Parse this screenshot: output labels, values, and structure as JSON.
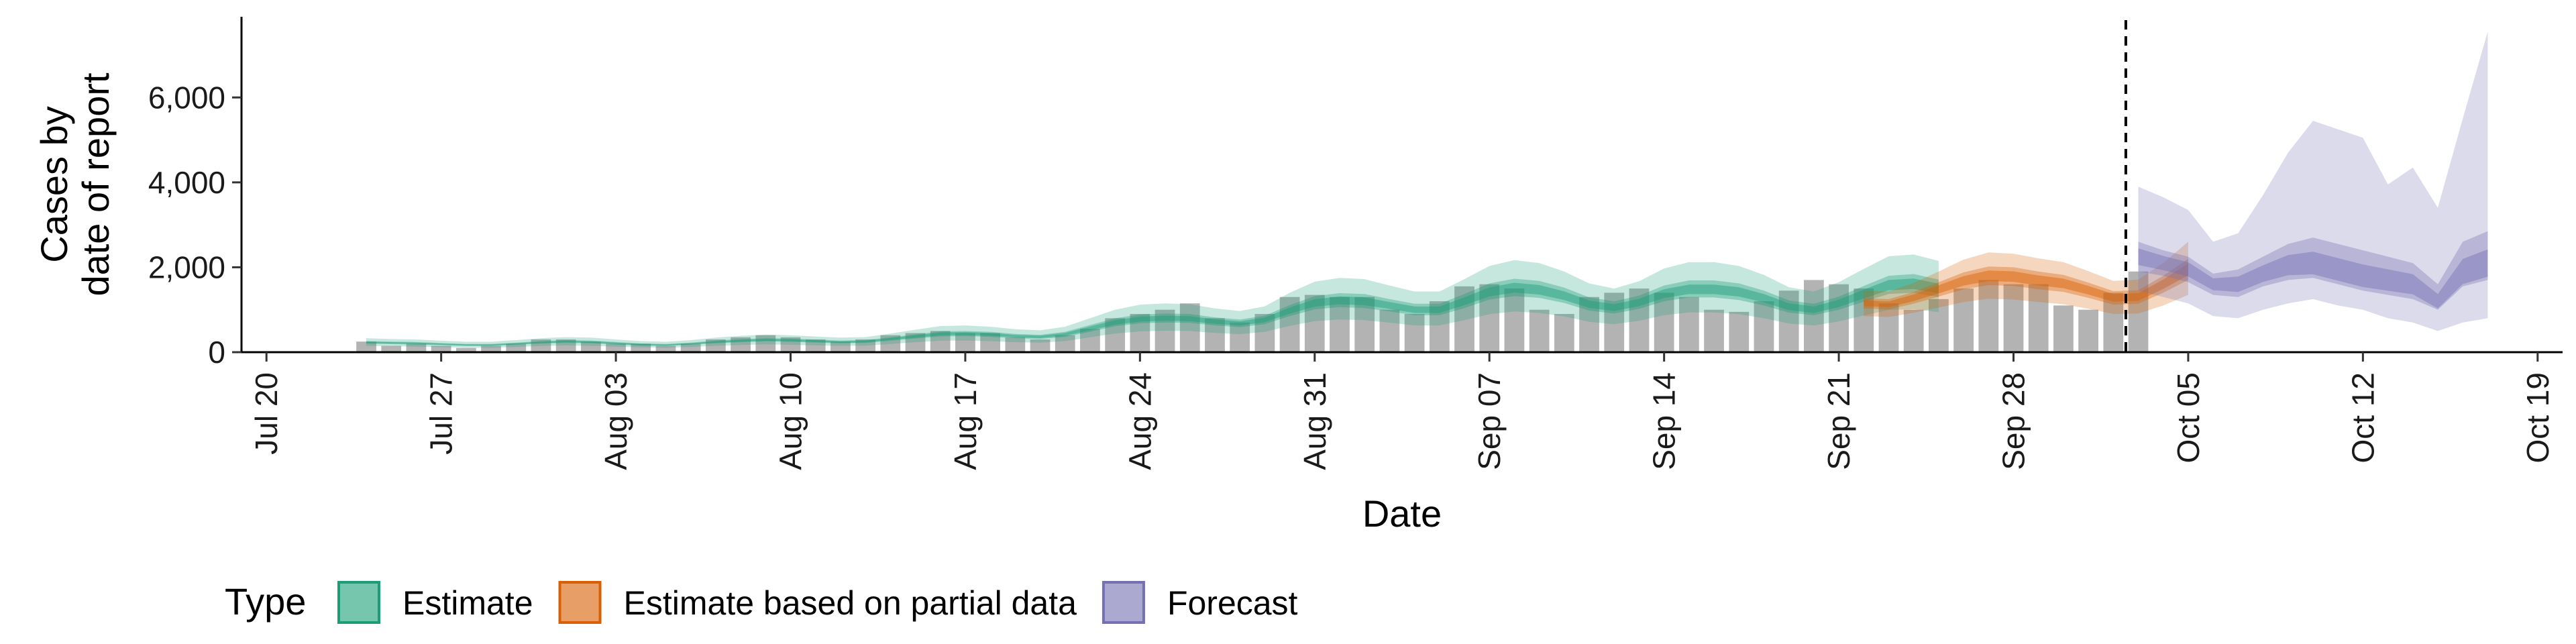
{
  "chart_data": {
    "type": "bar",
    "xlabel": "Date",
    "ylabel_lines": [
      "Cases by",
      "date of report"
    ],
    "ylim": [
      0,
      7900
    ],
    "xlim": [
      "2020-07-19",
      "2020-10-20"
    ],
    "y_ticks": [
      0,
      2000,
      4000,
      6000
    ],
    "y_tick_labels": [
      "0",
      "2,000",
      "4,000",
      "6,000"
    ],
    "x_ticks": [
      "2020-07-20",
      "2020-07-27",
      "2020-08-03",
      "2020-08-10",
      "2020-08-17",
      "2020-08-24",
      "2020-08-31",
      "2020-09-07",
      "2020-09-14",
      "2020-09-21",
      "2020-09-28",
      "2020-10-05",
      "2020-10-12",
      "2020-10-19"
    ],
    "x_tick_labels": [
      "Jul 20",
      "Jul 27",
      "Aug 03",
      "Aug 10",
      "Aug 17",
      "Aug 24",
      "Aug 31",
      "Sep 07",
      "Sep 14",
      "Sep 21",
      "Sep 28",
      "Oct 05",
      "Oct 12",
      "Oct 19"
    ],
    "reported_cases": {
      "start_date": "2020-07-24",
      "values": [
        250,
        150,
        200,
        150,
        100,
        150,
        200,
        300,
        300,
        250,
        200,
        200,
        150,
        200,
        300,
        350,
        400,
        350,
        300,
        250,
        300,
        400,
        450,
        500,
        450,
        450,
        350,
        300,
        400,
        550,
        800,
        900,
        1000,
        1150,
        800,
        700,
        900,
        1300,
        1350,
        1300,
        1300,
        1000,
        900,
        1200,
        1550,
        1600,
        1500,
        1000,
        900,
        1300,
        1400,
        1500,
        1400,
        1300,
        1000,
        950,
        1200,
        1450,
        1700,
        1600,
        1500,
        1150,
        1000,
        1250,
        1500,
        1700,
        1600,
        1600,
        1100,
        1000,
        1400,
        1900
      ]
    },
    "estimate": {
      "start_date": "2020-07-24",
      "median": [
        230,
        220,
        210,
        190,
        170,
        170,
        200,
        230,
        250,
        240,
        210,
        180,
        170,
        200,
        240,
        270,
        290,
        280,
        260,
        240,
        250,
        310,
        370,
        430,
        440,
        420,
        380,
        360,
        420,
        560,
        700,
        780,
        800,
        790,
        720,
        680,
        760,
        980,
        1160,
        1220,
        1200,
        1100,
        1000,
        1000,
        1200,
        1420,
        1520,
        1470,
        1330,
        1130,
        1050,
        1170,
        1380,
        1480,
        1480,
        1420,
        1270,
        1070,
        1000,
        1150,
        1370,
        1580,
        1610,
        1500
      ],
      "ci50": [
        [
          200,
          260
        ],
        [
          190,
          250
        ],
        [
          180,
          240
        ],
        [
          165,
          215
        ],
        [
          145,
          195
        ],
        [
          145,
          195
        ],
        [
          175,
          225
        ],
        [
          200,
          260
        ],
        [
          220,
          285
        ],
        [
          210,
          275
        ],
        [
          180,
          240
        ],
        [
          155,
          205
        ],
        [
          145,
          195
        ],
        [
          175,
          225
        ],
        [
          210,
          275
        ],
        [
          235,
          310
        ],
        [
          255,
          330
        ],
        [
          245,
          320
        ],
        [
          225,
          295
        ],
        [
          210,
          275
        ],
        [
          215,
          285
        ],
        [
          270,
          350
        ],
        [
          320,
          420
        ],
        [
          370,
          490
        ],
        [
          380,
          500
        ],
        [
          360,
          480
        ],
        [
          330,
          430
        ],
        [
          310,
          410
        ],
        [
          360,
          480
        ],
        [
          480,
          640
        ],
        [
          610,
          800
        ],
        [
          680,
          890
        ],
        [
          700,
          910
        ],
        [
          690,
          900
        ],
        [
          630,
          820
        ],
        [
          590,
          770
        ],
        [
          660,
          860
        ],
        [
          850,
          1110
        ],
        [
          1010,
          1320
        ],
        [
          1060,
          1390
        ],
        [
          1040,
          1370
        ],
        [
          960,
          1250
        ],
        [
          870,
          1140
        ],
        [
          870,
          1140
        ],
        [
          1040,
          1370
        ],
        [
          1240,
          1620
        ],
        [
          1320,
          1730
        ],
        [
          1280,
          1680
        ],
        [
          1160,
          1520
        ],
        [
          980,
          1290
        ],
        [
          910,
          1200
        ],
        [
          1020,
          1330
        ],
        [
          1200,
          1570
        ],
        [
          1290,
          1690
        ],
        [
          1290,
          1690
        ],
        [
          1230,
          1620
        ],
        [
          1100,
          1450
        ],
        [
          930,
          1220
        ],
        [
          870,
          1140
        ],
        [
          1000,
          1310
        ],
        [
          1190,
          1560
        ],
        [
          1370,
          1800
        ],
        [
          1400,
          1840
        ],
        [
          1300,
          1710
        ]
      ],
      "ci90": [
        [
          150,
          330
        ],
        [
          140,
          310
        ],
        [
          130,
          300
        ],
        [
          120,
          270
        ],
        [
          105,
          245
        ],
        [
          105,
          245
        ],
        [
          125,
          285
        ],
        [
          145,
          330
        ],
        [
          160,
          355
        ],
        [
          150,
          345
        ],
        [
          130,
          300
        ],
        [
          115,
          260
        ],
        [
          105,
          245
        ],
        [
          125,
          285
        ],
        [
          150,
          345
        ],
        [
          170,
          385
        ],
        [
          185,
          415
        ],
        [
          175,
          400
        ],
        [
          160,
          370
        ],
        [
          150,
          345
        ],
        [
          155,
          355
        ],
        [
          195,
          440
        ],
        [
          235,
          530
        ],
        [
          270,
          615
        ],
        [
          275,
          630
        ],
        [
          260,
          600
        ],
        [
          235,
          540
        ],
        [
          225,
          515
        ],
        [
          260,
          600
        ],
        [
          350,
          800
        ],
        [
          440,
          1000
        ],
        [
          490,
          1120
        ],
        [
          505,
          1150
        ],
        [
          500,
          1130
        ],
        [
          455,
          1030
        ],
        [
          425,
          970
        ],
        [
          480,
          1080
        ],
        [
          620,
          1400
        ],
        [
          730,
          1660
        ],
        [
          770,
          1750
        ],
        [
          755,
          1720
        ],
        [
          695,
          1570
        ],
        [
          630,
          1430
        ],
        [
          630,
          1430
        ],
        [
          755,
          1720
        ],
        [
          895,
          2030
        ],
        [
          960,
          2170
        ],
        [
          925,
          2100
        ],
        [
          840,
          1900
        ],
        [
          715,
          1620
        ],
        [
          660,
          1500
        ],
        [
          740,
          1670
        ],
        [
          870,
          1970
        ],
        [
          935,
          2120
        ],
        [
          935,
          2120
        ],
        [
          895,
          2030
        ],
        [
          800,
          1820
        ],
        [
          675,
          1530
        ],
        [
          630,
          1430
        ],
        [
          725,
          1650
        ],
        [
          865,
          1960
        ],
        [
          995,
          2260
        ],
        [
          1015,
          2300
        ],
        [
          945,
          2150
        ]
      ]
    },
    "partial": {
      "start_date": "2020-09-22",
      "median": [
        1150,
        1130,
        1280,
        1480,
        1680,
        1800,
        1780,
        1690,
        1620,
        1460,
        1280,
        1300,
        1600,
        1950
      ],
      "ci50": [
        [
          1030,
          1270
        ],
        [
          1010,
          1250
        ],
        [
          1140,
          1420
        ],
        [
          1310,
          1650
        ],
        [
          1480,
          1880
        ],
        [
          1580,
          2020
        ],
        [
          1560,
          2000
        ],
        [
          1480,
          1900
        ],
        [
          1420,
          1820
        ],
        [
          1280,
          1640
        ],
        [
          1120,
          1440
        ],
        [
          1140,
          1460
        ],
        [
          1400,
          1800
        ],
        [
          1700,
          2200
        ]
      ],
      "ci90": [
        [
          850,
          1450
        ],
        [
          830,
          1430
        ],
        [
          930,
          1630
        ],
        [
          1050,
          1900
        ],
        [
          1180,
          2180
        ],
        [
          1260,
          2350
        ],
        [
          1240,
          2320
        ],
        [
          1180,
          2210
        ],
        [
          1130,
          2120
        ],
        [
          1020,
          1910
        ],
        [
          900,
          1680
        ],
        [
          910,
          1710
        ],
        [
          1100,
          2100
        ],
        [
          1350,
          2600
        ]
      ]
    },
    "forecast": {
      "start_date": "2020-10-03",
      "median": [
        2250,
        2100,
        1950,
        1600,
        1600,
        1850,
        2050,
        2100,
        1950,
        1800,
        1700,
        1600,
        1200,
        1900,
        2100
      ],
      "ci50": [
        [
          1900,
          2600
        ],
        [
          1800,
          2400
        ],
        [
          1650,
          2250
        ],
        [
          1350,
          1850
        ],
        [
          1300,
          1950
        ],
        [
          1550,
          2250
        ],
        [
          1700,
          2550
        ],
        [
          1750,
          2700
        ],
        [
          1600,
          2550
        ],
        [
          1450,
          2400
        ],
        [
          1350,
          2250
        ],
        [
          1250,
          2100
        ],
        [
          1000,
          1600
        ],
        [
          1550,
          2600
        ],
        [
          1700,
          2850
        ]
      ],
      "ci90": [
        [
          1450,
          3900
        ],
        [
          1300,
          3650
        ],
        [
          1150,
          3350
        ],
        [
          850,
          2600
        ],
        [
          800,
          2800
        ],
        [
          1000,
          3700
        ],
        [
          1150,
          4700
        ],
        [
          1250,
          5450
        ],
        [
          1100,
          5250
        ],
        [
          1000,
          5050
        ],
        [
          800,
          3950
        ],
        [
          700,
          4350
        ],
        [
          500,
          3400
        ],
        [
          700,
          5500
        ],
        [
          800,
          7550
        ]
      ]
    },
    "forecast_line_date": "2020-10-02",
    "legend": {
      "title": "Type",
      "position": "bottom",
      "items": [
        {
          "label": "Estimate",
          "color": "#1b9e77"
        },
        {
          "label": "Estimate based on partial data",
          "color": "#d95f02"
        },
        {
          "label": "Forecast",
          "color": "#7570b3"
        }
      ]
    },
    "colors": {
      "bars": "#b3b3b3",
      "estimate": "#1b9e77",
      "partial": "#d95f02",
      "forecast": "#7570b3"
    },
    "grid": false
  }
}
